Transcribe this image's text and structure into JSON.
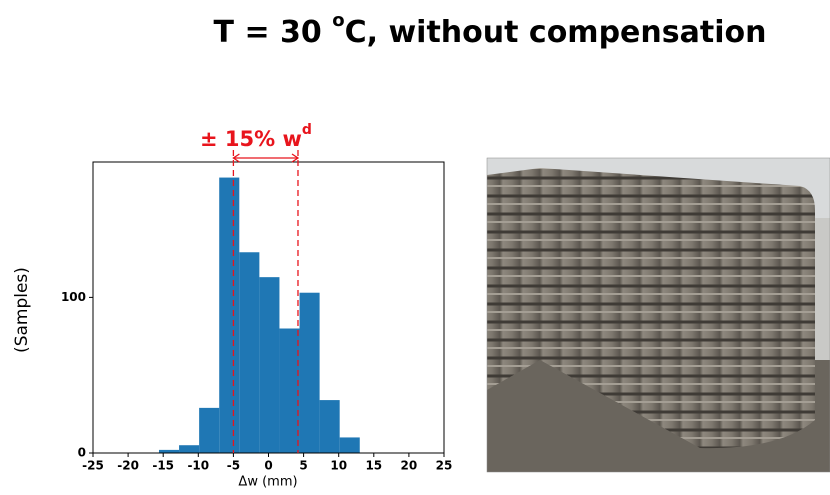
{
  "chart_data": {
    "type": "histogram",
    "title_parts": [
      "T = 30 ",
      "o",
      "C, without compensation"
    ],
    "annotation": {
      "text": "± 15% w",
      "superscript": "d",
      "color": "#e8141c",
      "lines": [
        -5,
        4.2
      ]
    },
    "x_label": "Δw (mm)",
    "y_label": "(Samples)",
    "bins": [
      -15.6,
      -12.74,
      -9.88,
      -7.02,
      -4.16,
      -1.3,
      1.56,
      4.42,
      7.28,
      10.14,
      13.0
    ],
    "values": [
      2,
      5,
      29,
      177,
      129,
      113,
      80,
      103,
      34,
      10
    ],
    "color": "#1f77b4",
    "xlim": [
      -25,
      25
    ],
    "xticks": [
      -25,
      -20,
      -15,
      -10,
      -5,
      0,
      5,
      10,
      15,
      20,
      25
    ],
    "ylim": [
      0,
      187
    ],
    "yticks": [
      0,
      100
    ]
  }
}
